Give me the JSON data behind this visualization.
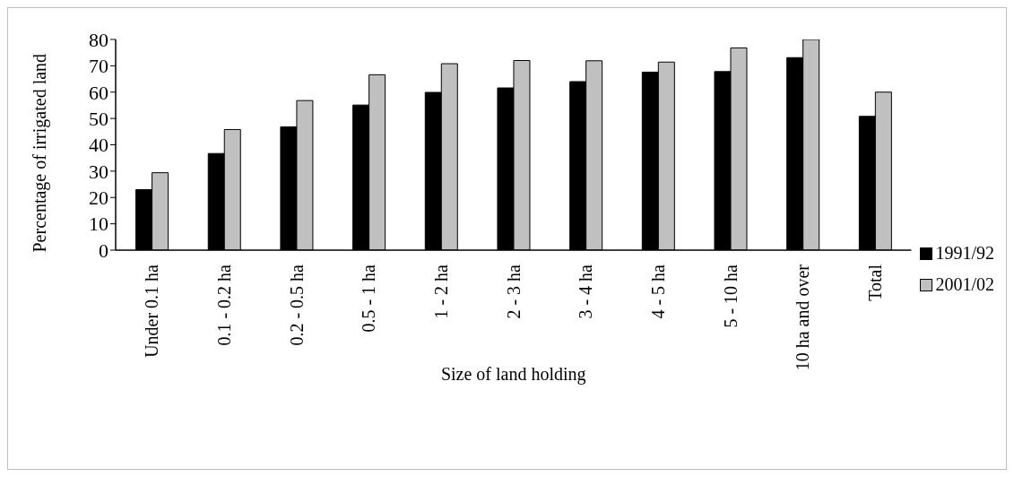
{
  "chart_data": {
    "type": "bar",
    "xlabel": "Size of land holding",
    "ylabel": "Percentage of irrigated land",
    "categories": [
      "Under 0.1 ha",
      "0.1 - 0.2 ha",
      "0.2 - 0.5 ha",
      "0.5 - 1 ha",
      "1 - 2 ha",
      "2 - 3 ha",
      "3 - 4 ha",
      "4 - 5 ha",
      "5 - 10 ha",
      "10 ha and over",
      "Total"
    ],
    "series": [
      {
        "name": "1991/92",
        "color": "#000000",
        "values": [
          23.0,
          36.7,
          46.8,
          55.1,
          59.9,
          61.6,
          64.0,
          67.6,
          67.8,
          73.1,
          50.8
        ]
      },
      {
        "name": "2001/02",
        "color": "#c0c0c0",
        "values": [
          29.4,
          45.8,
          56.8,
          66.6,
          70.8,
          72.0,
          71.9,
          71.4,
          76.8,
          80.0,
          60.0
        ]
      }
    ],
    "ylim": [
      0,
      80
    ],
    "yticks": [
      0,
      10,
      20,
      30,
      40,
      50,
      60,
      70,
      80
    ],
    "grid": false,
    "legend": "right"
  }
}
